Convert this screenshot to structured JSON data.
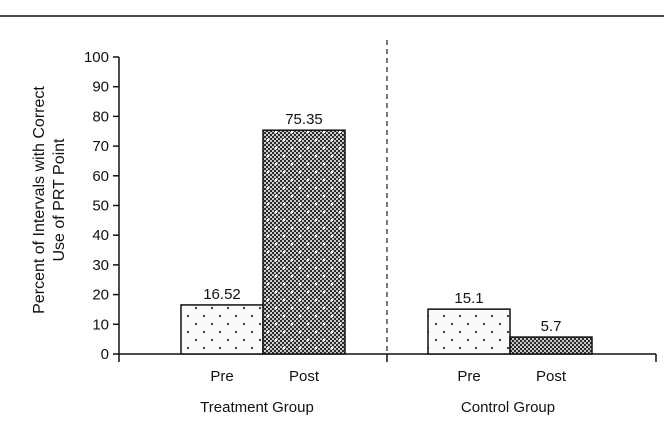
{
  "chart_data": {
    "type": "bar",
    "ylabel": [
      "Percent of Intervals with Correct",
      "Use of PRT Point"
    ],
    "ylim": [
      0,
      100
    ],
    "yticks": [
      0,
      10,
      20,
      30,
      40,
      50,
      60,
      70,
      80,
      90,
      100
    ],
    "groups": [
      {
        "label": "Treatment Group",
        "bars": [
          {
            "category": "Pre",
            "value": 16.52,
            "label": "16.52",
            "pattern": "dots"
          },
          {
            "category": "Post",
            "value": 75.35,
            "label": "75.35",
            "pattern": "checker"
          }
        ]
      },
      {
        "label": "Control Group",
        "bars": [
          {
            "category": "Pre",
            "value": 15.1,
            "label": "15.1",
            "pattern": "dots"
          },
          {
            "category": "Post",
            "value": 5.7,
            "label": "5.7",
            "pattern": "checker"
          }
        ]
      }
    ],
    "separator": "dashed-vertical",
    "grid": false,
    "legend": "none"
  }
}
